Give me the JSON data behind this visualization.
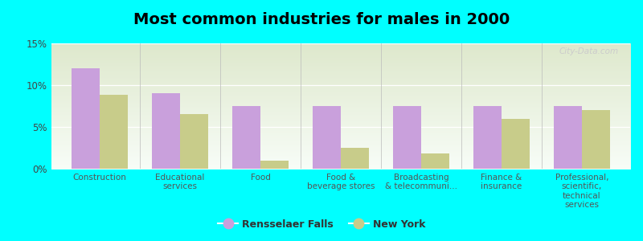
{
  "title": "Most common industries for males in 2000",
  "categories": [
    "Construction",
    "Educational\nservices",
    "Food",
    "Food &\nbeverage stores",
    "Broadcasting\n& telecommuni...",
    "Finance &\ninsurance",
    "Professional,\nscientific,\ntechnical\nservices"
  ],
  "rensselaer_falls": [
    12.0,
    9.0,
    7.5,
    7.5,
    7.5,
    7.5,
    7.5
  ],
  "new_york": [
    8.8,
    6.5,
    1.0,
    2.5,
    1.8,
    6.0,
    7.0
  ],
  "rf_color": "#c9a0dc",
  "ny_color": "#c8cc8a",
  "bg_color": "#00ffff",
  "plot_bg_top": "#f0f5ee",
  "plot_bg_bottom": "#dde8cc",
  "bar_width": 0.35,
  "ylim": [
    0,
    15
  ],
  "yticks": [
    0,
    5,
    10,
    15
  ],
  "ytick_labels": [
    "0%",
    "5%",
    "10%",
    "15%"
  ],
  "legend_rf": "Rensselaer Falls",
  "legend_ny": "New York",
  "title_fontsize": 14,
  "watermark": "City-Data.com"
}
